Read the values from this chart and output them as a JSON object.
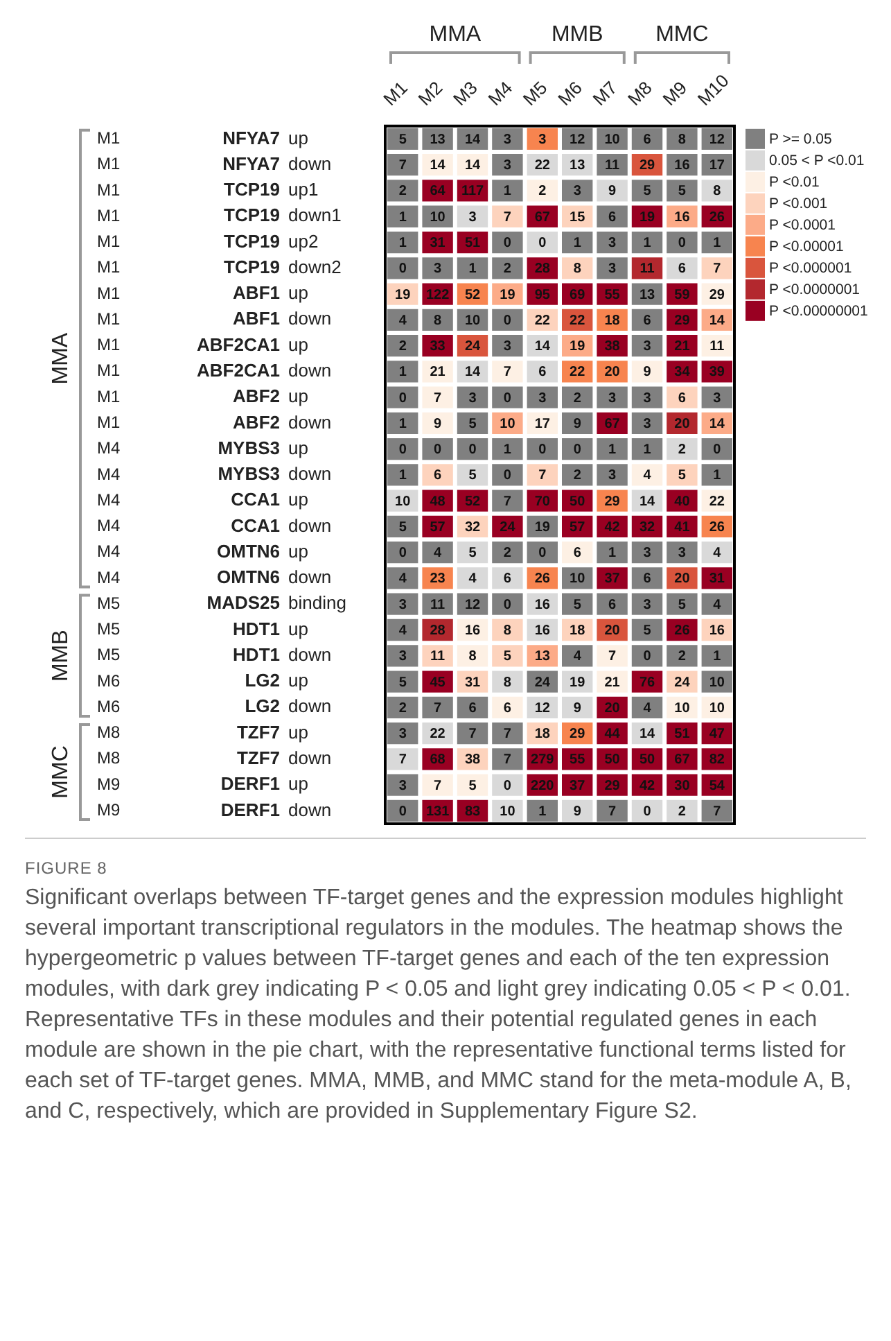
{
  "chart_data": {
    "type": "heatmap",
    "categories": [
      "M1",
      "M2",
      "M3",
      "M4",
      "M5",
      "M6",
      "M7",
      "M8",
      "M9",
      "M10"
    ],
    "y_categories": [
      "NFYA7",
      "NFYA7",
      "TCP19",
      "TCP19",
      "TCP19",
      "TCP19",
      "ABF1",
      "ABF1",
      "ABF2CA1",
      "ABF2CA1",
      "ABF2",
      "ABF2",
      "MYBS3",
      "MYBS3",
      "CCA1",
      "CCA1",
      "OMTN6",
      "OMTN6",
      "MADS25",
      "HDT1",
      "HDT1",
      "LG2",
      "LG2",
      "TZF7",
      "TZF7",
      "DERF1",
      "DERF1"
    ],
    "y2_categories": [
      "up",
      "down",
      "up1",
      "down1",
      "up2",
      "down2",
      "up",
      "down",
      "up",
      "down",
      "up",
      "down",
      "up",
      "down",
      "up",
      "down",
      "up",
      "down",
      "binding",
      "up",
      "down",
      "up",
      "down",
      "up",
      "down",
      "up",
      "down"
    ],
    "cells": [
      [
        5,
        13,
        14,
        3,
        3,
        12,
        10,
        6,
        8,
        12
      ],
      [
        7,
        14,
        14,
        3,
        22,
        13,
        11,
        29,
        16,
        17
      ],
      [
        2,
        64,
        117,
        1,
        2,
        3,
        9,
        5,
        5,
        8
      ],
      [
        1,
        10,
        3,
        7,
        67,
        15,
        6,
        19,
        16,
        26
      ],
      [
        1,
        31,
        51,
        0,
        0,
        1,
        3,
        1,
        0,
        1
      ],
      [
        0,
        3,
        1,
        2,
        28,
        8,
        3,
        11,
        6,
        7
      ],
      [
        19,
        122,
        52,
        19,
        95,
        69,
        55,
        13,
        59,
        29
      ],
      [
        4,
        8,
        10,
        0,
        22,
        22,
        18,
        6,
        29,
        14
      ],
      [
        2,
        33,
        24,
        3,
        14,
        19,
        38,
        3,
        21,
        11
      ],
      [
        1,
        21,
        14,
        7,
        6,
        22,
        20,
        9,
        34,
        39
      ],
      [
        0,
        7,
        3,
        0,
        3,
        2,
        3,
        3,
        6,
        3
      ],
      [
        1,
        9,
        5,
        10,
        17,
        9,
        67,
        3,
        20,
        14
      ],
      [
        0,
        0,
        0,
        1,
        0,
        0,
        1,
        1,
        2,
        0
      ],
      [
        1,
        6,
        5,
        0,
        7,
        2,
        3,
        4,
        5,
        1
      ],
      [
        10,
        48,
        52,
        7,
        70,
        50,
        29,
        14,
        40,
        22
      ],
      [
        5,
        57,
        32,
        24,
        19,
        57,
        42,
        32,
        41,
        26
      ],
      [
        0,
        4,
        5,
        2,
        0,
        6,
        1,
        3,
        3,
        4
      ],
      [
        4,
        23,
        4,
        6,
        26,
        10,
        37,
        6,
        20,
        31
      ],
      [
        3,
        11,
        12,
        0,
        16,
        5,
        6,
        3,
        5,
        4
      ],
      [
        4,
        28,
        16,
        8,
        16,
        18,
        20,
        5,
        26,
        16
      ],
      [
        3,
        11,
        8,
        5,
        13,
        4,
        7,
        0,
        2,
        1
      ],
      [
        5,
        45,
        31,
        8,
        24,
        19,
        21,
        76,
        24,
        10
      ],
      [
        2,
        7,
        6,
        6,
        12,
        9,
        20,
        4,
        10,
        10
      ],
      [
        3,
        22,
        7,
        7,
        18,
        29,
        44,
        14,
        51,
        47
      ],
      [
        7,
        68,
        38,
        7,
        279,
        55,
        50,
        50,
        67,
        82
      ],
      [
        3,
        7,
        5,
        0,
        220,
        37,
        29,
        42,
        30,
        54
      ],
      [
        0,
        131,
        83,
        10,
        1,
        9,
        7,
        0,
        2,
        7
      ]
    ],
    "colors": [
      [
        "#808080",
        "#808080",
        "#808080",
        "#808080",
        "#f7844f",
        "#808080",
        "#808080",
        "#808080",
        "#808080",
        "#808080"
      ],
      [
        "#808080",
        "#fdf0e4",
        "#fdf0e4",
        "#808080",
        "#d9d9d9",
        "#d9d9d9",
        "#808080",
        "#d9553d",
        "#808080",
        "#808080"
      ],
      [
        "#808080",
        "#990022",
        "#990022",
        "#808080",
        "#fdf0e4",
        "#808080",
        "#d9d9d9",
        "#808080",
        "#808080",
        "#d9d9d9"
      ],
      [
        "#808080",
        "#808080",
        "#d9d9d9",
        "#fdd3bd",
        "#990022",
        "#fdd3bd",
        "#808080",
        "#990022",
        "#fcab88",
        "#990022"
      ],
      [
        "#808080",
        "#990022",
        "#990022",
        "#808080",
        "#d9d9d9",
        "#808080",
        "#808080",
        "#808080",
        "#808080",
        "#808080"
      ],
      [
        "#808080",
        "#808080",
        "#808080",
        "#808080",
        "#990022",
        "#fdd3bd",
        "#808080",
        "#b3282e",
        "#d9d9d9",
        "#fdd3bd"
      ],
      [
        "#fdd3bd",
        "#990022",
        "#f7844f",
        "#fcab88",
        "#990022",
        "#990022",
        "#990022",
        "#808080",
        "#990022",
        "#fdf0e4"
      ],
      [
        "#808080",
        "#808080",
        "#808080",
        "#808080",
        "#fdd3bd",
        "#d9553d",
        "#f7844f",
        "#808080",
        "#990022",
        "#fcab88"
      ],
      [
        "#808080",
        "#990022",
        "#d9553d",
        "#808080",
        "#d9d9d9",
        "#fcab88",
        "#990022",
        "#808080",
        "#990022",
        "#fdf0e4"
      ],
      [
        "#808080",
        "#fdf0e4",
        "#d9d9d9",
        "#fdf0e4",
        "#d9d9d9",
        "#f7844f",
        "#f7844f",
        "#fdf0e4",
        "#990022",
        "#990022"
      ],
      [
        "#808080",
        "#fdf0e4",
        "#808080",
        "#808080",
        "#808080",
        "#808080",
        "#808080",
        "#808080",
        "#fdd3bd",
        "#808080"
      ],
      [
        "#808080",
        "#fdf0e4",
        "#808080",
        "#fcab88",
        "#fdf0e4",
        "#808080",
        "#990022",
        "#808080",
        "#b3282e",
        "#fcab88"
      ],
      [
        "#808080",
        "#808080",
        "#808080",
        "#808080",
        "#808080",
        "#808080",
        "#808080",
        "#808080",
        "#d9d9d9",
        "#808080"
      ],
      [
        "#808080",
        "#fdd3bd",
        "#d9d9d9",
        "#808080",
        "#fdd3bd",
        "#808080",
        "#808080",
        "#fdf0e4",
        "#fdd3bd",
        "#808080"
      ],
      [
        "#d9d9d9",
        "#990022",
        "#990022",
        "#808080",
        "#990022",
        "#990022",
        "#f7844f",
        "#d9d9d9",
        "#990022",
        "#fdf0e4"
      ],
      [
        "#808080",
        "#990022",
        "#fdd3bd",
        "#990022",
        "#808080",
        "#990022",
        "#990022",
        "#990022",
        "#990022",
        "#f7844f"
      ],
      [
        "#808080",
        "#808080",
        "#d9d9d9",
        "#808080",
        "#808080",
        "#fdf0e4",
        "#808080",
        "#808080",
        "#808080",
        "#d9d9d9"
      ],
      [
        "#808080",
        "#f7844f",
        "#d9d9d9",
        "#d9d9d9",
        "#f7844f",
        "#808080",
        "#990022",
        "#808080",
        "#d9553d",
        "#990022"
      ],
      [
        "#808080",
        "#808080",
        "#808080",
        "#808080",
        "#d9d9d9",
        "#808080",
        "#808080",
        "#808080",
        "#808080",
        "#808080"
      ],
      [
        "#808080",
        "#b3282e",
        "#fdf0e4",
        "#fdd3bd",
        "#d9d9d9",
        "#fdd3bd",
        "#d9553d",
        "#808080",
        "#990022",
        "#fdd3bd"
      ],
      [
        "#808080",
        "#fdd3bd",
        "#fdf0e4",
        "#fdd3bd",
        "#fcab88",
        "#808080",
        "#fdf0e4",
        "#808080",
        "#808080",
        "#808080"
      ],
      [
        "#808080",
        "#990022",
        "#fdd3bd",
        "#d9d9d9",
        "#808080",
        "#d9d9d9",
        "#fdf0e4",
        "#990022",
        "#fdd3bd",
        "#808080"
      ],
      [
        "#808080",
        "#808080",
        "#808080",
        "#fdf0e4",
        "#d9d9d9",
        "#d9d9d9",
        "#990022",
        "#808080",
        "#fdf0e4",
        "#fdf0e4"
      ],
      [
        "#808080",
        "#d9d9d9",
        "#808080",
        "#808080",
        "#fdd3bd",
        "#f7844f",
        "#990022",
        "#d9d9d9",
        "#990022",
        "#990022"
      ],
      [
        "#d9d9d9",
        "#990022",
        "#fdd3bd",
        "#808080",
        "#990022",
        "#990022",
        "#990022",
        "#990022",
        "#990022",
        "#990022"
      ],
      [
        "#808080",
        "#fdf0e4",
        "#fdf0e4",
        "#d9d9d9",
        "#990022",
        "#990022",
        "#990022",
        "#990022",
        "#990022",
        "#990022"
      ],
      [
        "#808080",
        "#990022",
        "#990022",
        "#d9d9d9",
        "#808080",
        "#d9d9d9",
        "#808080",
        "#d9d9d9",
        "#d9d9d9",
        "#808080"
      ]
    ],
    "data_labels": true,
    "legend": "right",
    "series": [
      {
        "name": "P >= 0.05",
        "color": "#808080",
        "values": [
          null,
          null,
          null,
          null,
          null,
          null,
          null,
          null,
          null,
          null
        ]
      },
      {
        "name": "0.05 < P <0.01",
        "color": "#d9d9d9",
        "values": [
          null,
          null,
          null,
          null,
          null,
          null,
          null,
          null,
          null,
          null
        ]
      },
      {
        "name": "P <0.01",
        "color": "#fdf0e4",
        "values": [
          null,
          null,
          null,
          null,
          null,
          null,
          null,
          null,
          null,
          null
        ]
      },
      {
        "name": "P <0.001",
        "color": "#fdd3bd",
        "values": [
          null,
          null,
          null,
          null,
          null,
          null,
          null,
          null,
          null,
          null
        ]
      },
      {
        "name": "P <0.0001",
        "color": "#fcab88",
        "values": [
          null,
          null,
          null,
          null,
          null,
          null,
          null,
          null,
          null,
          null
        ]
      },
      {
        "name": "P <0.00001",
        "color": "#f7844f",
        "values": [
          null,
          null,
          null,
          null,
          null,
          null,
          null,
          null,
          null,
          null
        ]
      },
      {
        "name": "P <0.000001",
        "color": "#d9553d",
        "values": [
          null,
          null,
          null,
          null,
          null,
          null,
          null,
          null,
          null,
          null
        ]
      },
      {
        "name": "P <0.0000001",
        "color": "#b3282e",
        "values": [
          null,
          null,
          null,
          null,
          null,
          null,
          null,
          null,
          null,
          null
        ]
      },
      {
        "name": "P <0.00000001",
        "color": "#990022",
        "values": [
          null,
          null,
          null,
          null,
          null,
          null,
          null,
          null,
          null,
          null
        ]
      }
    ],
    "annotations": [
      "MMA",
      "MMB",
      "MMC",
      "MMA",
      "MMB",
      "MMC",
      "M1",
      "M1",
      "M1",
      "M1",
      "M1",
      "M1",
      "M1",
      "M1",
      "M1",
      "M1",
      "M1",
      "M1",
      "M4",
      "M4",
      "M4",
      "M4",
      "M4",
      "M4",
      "M5",
      "M5",
      "M5",
      "M6",
      "M6",
      "M8",
      "M8",
      "M9",
      "M9",
      "FIGURE 8",
      "Significant overlaps between TF-target genes and the expression modules highlight several important transcriptional regulators in the modules. The heatmap shows the hypergeometric p values between TF-target genes and each of the ten expression modules, with dark grey indicating P < 0.05 and light grey indicating 0.05 < P < 0.01. Representative TFs in these modules and their potential regulated genes in each module are shown in the pie chart, with the representative functional terms listed for each set of TF-target genes. MMA, MMB, and MMC stand for the meta-module A, B, and C, respectively, which are provided in Supplementary Figure S2."
    ]
  }
}
